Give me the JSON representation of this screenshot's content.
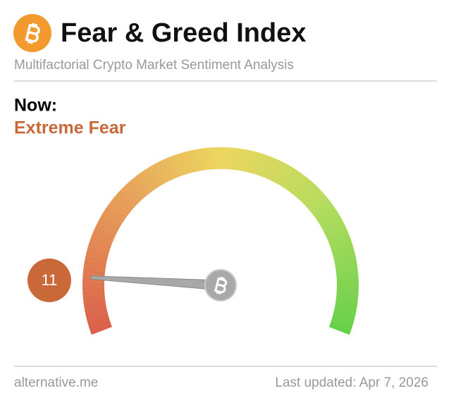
{
  "chart_data": {
    "type": "gauge",
    "title": "Fear & Greed Index",
    "subtitle": "Multifactorial Crypto Market Sentiment Analysis",
    "heading": "Now:",
    "classification": "Extreme Fear",
    "value": 11,
    "ylim": [
      0,
      100
    ],
    "color": "#c9693a",
    "source": "alternative.me",
    "updated": "Last updated: Apr 7, 2026"
  }
}
